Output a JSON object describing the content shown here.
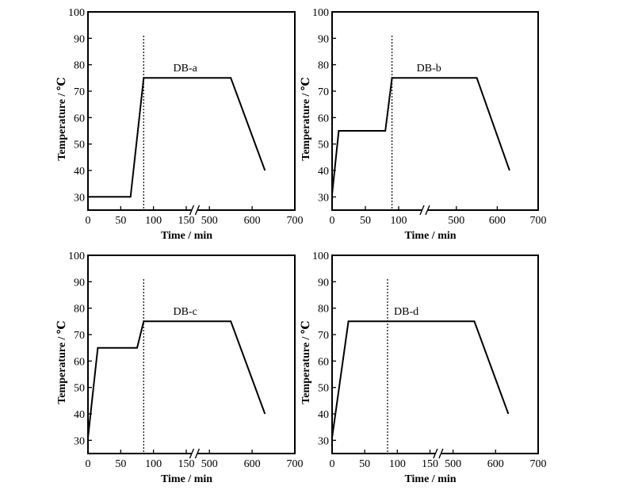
{
  "figure": {
    "x_label": "Time / min",
    "y_label": "Temperature / ℃",
    "x_tick_labels": [
      "0",
      "50",
      "100",
      "150",
      "500",
      "600",
      "700"
    ],
    "y_tick_labels": [
      "30",
      "40",
      "50",
      "60",
      "70",
      "80",
      "90",
      "100"
    ]
  },
  "chart_data": [
    {
      "type": "line",
      "title": "DB-a",
      "xlabel": "Time / min",
      "ylabel": "Temperature / ℃",
      "xlim": [
        0,
        700
      ],
      "ylim": [
        25,
        100
      ],
      "x_axis_break": "between 150 and 500 min",
      "x_ticks": [
        0,
        50,
        100,
        150,
        500,
        600,
        700
      ],
      "y_ticks": [
        30,
        40,
        50,
        60,
        70,
        80,
        90,
        100
      ],
      "grid": false,
      "series": [
        {
          "x": [
            0,
            65,
            85,
            550,
            630
          ],
          "y": [
            30,
            30,
            75,
            75,
            40
          ]
        }
      ],
      "reference_line_x": 85
    },
    {
      "type": "line",
      "title": "DB-b",
      "xlabel": "Time / min",
      "ylabel": "Temperature / ℃",
      "xlim": [
        0,
        700
      ],
      "ylim": [
        25,
        100
      ],
      "x_axis_break": "between 100 and 500 min",
      "x_ticks": [
        0,
        50,
        100,
        500,
        600,
        700
      ],
      "y_ticks": [
        30,
        40,
        50,
        60,
        70,
        80,
        90,
        100
      ],
      "grid": false,
      "series": [
        {
          "x": [
            0,
            10,
            80,
            90,
            550,
            630
          ],
          "y": [
            31,
            55,
            55,
            75,
            75,
            40
          ]
        }
      ],
      "reference_line_x": 90
    },
    {
      "type": "line",
      "title": "DB-c",
      "xlabel": "Time / min",
      "ylabel": "Temperature / ℃",
      "xlim": [
        0,
        700
      ],
      "ylim": [
        25,
        100
      ],
      "x_axis_break": "between 150 and 500 min",
      "x_ticks": [
        0,
        50,
        100,
        150,
        500,
        600,
        700
      ],
      "y_ticks": [
        30,
        40,
        50,
        60,
        70,
        80,
        90,
        100
      ],
      "grid": false,
      "series": [
        {
          "x": [
            0,
            15,
            75,
            85,
            550,
            630
          ],
          "y": [
            31,
            65,
            65,
            75,
            75,
            40
          ]
        }
      ],
      "reference_line_x": 85
    },
    {
      "type": "line",
      "title": "DB-d",
      "xlabel": "Time / min",
      "ylabel": "Temperature / ℃",
      "xlim": [
        0,
        700
      ],
      "ylim": [
        25,
        100
      ],
      "x_axis_break": "between 150 and 500 min",
      "x_ticks": [
        0,
        50,
        100,
        150,
        500,
        600,
        700
      ],
      "y_ticks": [
        30,
        40,
        50,
        60,
        70,
        80,
        90,
        100
      ],
      "grid": false,
      "series": [
        {
          "x": [
            0,
            25,
            550,
            630
          ],
          "y": [
            31,
            75,
            75,
            40
          ]
        }
      ],
      "reference_line_x": 85
    }
  ]
}
